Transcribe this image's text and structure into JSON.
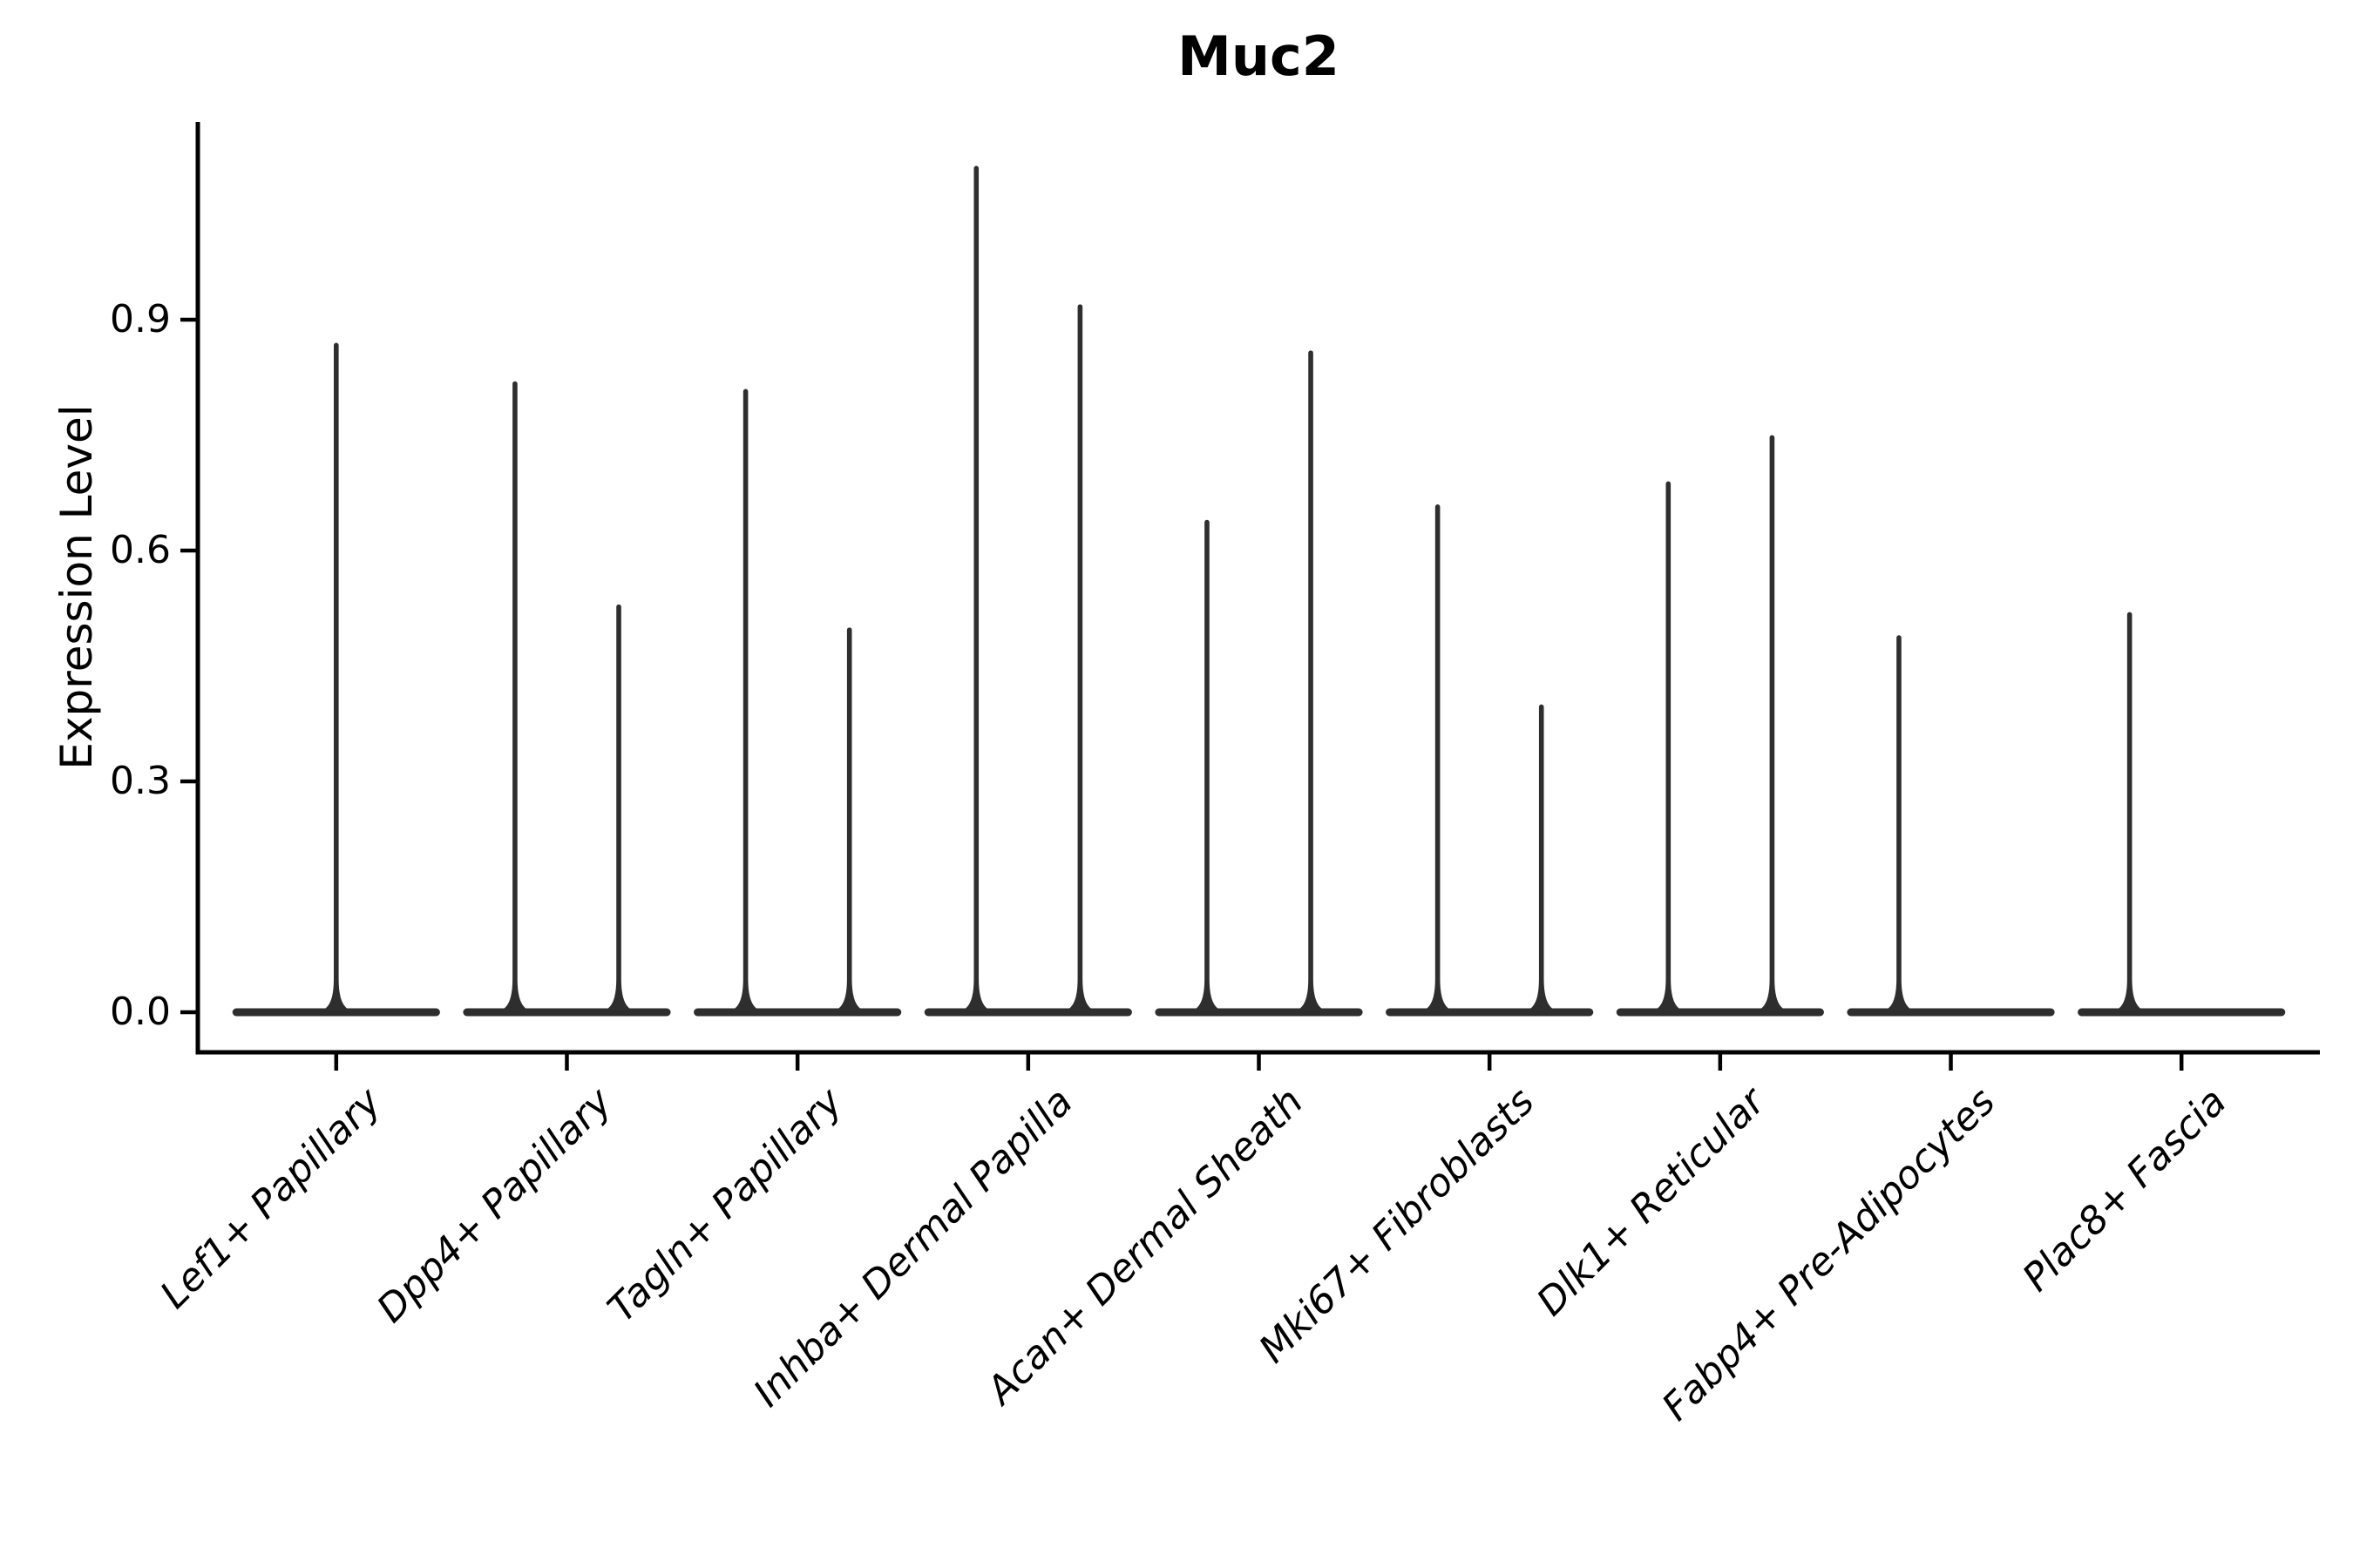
{
  "page": {
    "background": "#ffffff"
  },
  "colors": {
    "violin": "#2e2e2e",
    "axis": "#000000",
    "text": "#000000"
  },
  "chart_data": {
    "type": "violin",
    "title": "Muc2",
    "ylabel": "Expression Level",
    "xlabel": "",
    "yticks": [
      0.0,
      0.3,
      0.6,
      0.9
    ],
    "ytick_labels": [
      "0.0",
      "0.3",
      "0.6",
      "0.9"
    ],
    "ylim": [
      -0.05,
      1.16
    ],
    "grid": false,
    "legend": "none",
    "style_note": "Seurat-style VlnPlot: expression mostly zero, so each violin collapses to a wide flat base at 0 with a thin vertical spike up to its maximum; categories may contain one full-width violin (center spike) or two dodged violins (left/right spikes).",
    "categories": [
      "Lef1+ Papillary",
      "Dpp4+ Papillary",
      "Tagln+ Papillary",
      "Inhba+ Dermal Papilla",
      "Acan+ Dermal Sheath",
      "Mki67+ Fibroblasts",
      "Dlk1+ Reticular",
      "Fabp4+ Pre-Adipocytes",
      "Plac8+ Fascia"
    ],
    "violins": [
      {
        "category": "Lef1+ Papillary",
        "base_at_zero": true,
        "spikes": [
          {
            "position": "center",
            "max": 0.87
          }
        ]
      },
      {
        "category": "Dpp4+ Papillary",
        "base_at_zero": true,
        "spikes": [
          {
            "position": "left",
            "max": 0.82
          },
          {
            "position": "right",
            "max": 0.53
          }
        ]
      },
      {
        "category": "Tagln+ Papillary",
        "base_at_zero": true,
        "spikes": [
          {
            "position": "left",
            "max": 0.81
          },
          {
            "position": "right",
            "max": 0.5
          }
        ]
      },
      {
        "category": "Inhba+ Dermal Papilla",
        "base_at_zero": true,
        "spikes": [
          {
            "position": "left",
            "max": 1.1
          },
          {
            "position": "right",
            "max": 0.92
          }
        ]
      },
      {
        "category": "Acan+ Dermal Sheath",
        "base_at_zero": true,
        "spikes": [
          {
            "position": "left",
            "max": 0.64
          },
          {
            "position": "right",
            "max": 0.86
          }
        ]
      },
      {
        "category": "Mki67+ Fibroblasts",
        "base_at_zero": true,
        "spikes": [
          {
            "position": "left",
            "max": 0.66
          },
          {
            "position": "right",
            "max": 0.4
          }
        ]
      },
      {
        "category": "Dlk1+ Reticular",
        "base_at_zero": true,
        "spikes": [
          {
            "position": "left",
            "max": 0.69
          },
          {
            "position": "right",
            "max": 0.75
          }
        ]
      },
      {
        "category": "Fabp4+ Pre-Adipocytes",
        "base_at_zero": true,
        "spikes": [
          {
            "position": "left",
            "max": 0.49
          }
        ]
      },
      {
        "category": "Plac8+ Fascia",
        "base_at_zero": true,
        "spikes": [
          {
            "position": "left",
            "max": 0.52
          }
        ]
      }
    ]
  }
}
